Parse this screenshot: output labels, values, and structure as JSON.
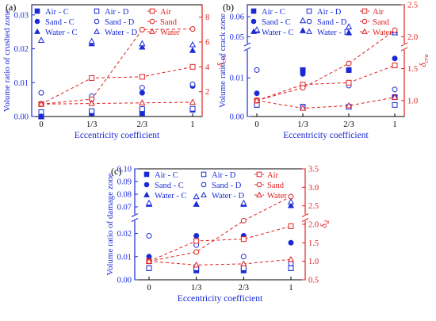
{
  "legend_series": [
    {
      "key": "air_c",
      "label": "Air - C",
      "marker": "square",
      "filled": true,
      "color": "#1a2bd6"
    },
    {
      "key": "air_d",
      "label": "Air - D",
      "marker": "square",
      "filled": false,
      "color": "#1a2bd6"
    },
    {
      "key": "air",
      "label": "Air",
      "marker": "square",
      "filled": false,
      "color": "#e02020",
      "dashed": true
    },
    {
      "key": "sand_c",
      "label": "Sand - C",
      "marker": "circle",
      "filled": true,
      "color": "#1a2bd6"
    },
    {
      "key": "sand_d",
      "label": "Sand - D",
      "marker": "circle",
      "filled": false,
      "color": "#1a2bd6"
    },
    {
      "key": "sand",
      "label": "Sand",
      "marker": "circle",
      "filled": false,
      "color": "#e02020",
      "dashed": true
    },
    {
      "key": "water_c",
      "label": "Water - C",
      "marker": "triangle",
      "filled": true,
      "color": "#1a2bd6"
    },
    {
      "key": "water_d",
      "label": "Water - D",
      "marker": "triangle",
      "filled": false,
      "color": "#1a2bd6"
    },
    {
      "key": "water",
      "label": "Water",
      "marker": "triangle",
      "filled": false,
      "color": "#e02020",
      "dashed": true
    }
  ],
  "colors": {
    "left_axis": "#1a2bd6",
    "right_axis": "#e02020",
    "frame": "#000000"
  },
  "chart_data": [
    {
      "panel_label": "(a)",
      "type": "scatter",
      "x_ticks": [
        "0",
        "1/3",
        "2/3",
        "1"
      ],
      "x": [
        0,
        0.3333,
        0.6667,
        1
      ],
      "xlabel": "Eccentricity coefficient",
      "ylabel": "Volume ratio of crushed zone",
      "y2label": "δ",
      "y2label_sub": "cru",
      "y_segments": [
        {
          "range": [
            0,
            0.033
          ],
          "ticks": [
            "0.00",
            "0.01",
            "0.02",
            "0.03"
          ]
        }
      ],
      "y2_range": [
        0,
        9
      ],
      "y2_ticks": [
        "2",
        "4",
        "6",
        "8"
      ],
      "series": {
        "air_c": [
          0.0,
          0.001,
          0.001,
          0.002
        ],
        "air_d": [
          0.0013,
          0.0016,
          0.0022,
          0.0023
        ],
        "sand_c": [
          0.0,
          0.005,
          0.007,
          0.009
        ],
        "sand_d": [
          0.007,
          0.006,
          0.0085,
          0.0095
        ],
        "water_c": [
          0.0,
          0.0215,
          0.0205,
          0.0195
        ],
        "water_d": [
          0.0225,
          0.0222,
          0.0215,
          0.0212
        ],
        "air": [
          1.0,
          3.1,
          3.2,
          4.0
        ],
        "sand": [
          1.0,
          1.4,
          7.0,
          7.05
        ],
        "water": [
          1.0,
          1.05,
          1.1,
          1.15
        ]
      }
    },
    {
      "panel_label": "(b)",
      "type": "scatter",
      "x_ticks": [
        "0",
        "1/3",
        "2/3",
        "1"
      ],
      "x": [
        0,
        0.3333,
        0.6667,
        1
      ],
      "xlabel": "Eccentricity coefficient",
      "ylabel": "Volume ratio of crack zone",
      "y2label": "δ",
      "y2label_sub": "cra",
      "y_segments": [
        {
          "range": [
            0,
            0.017
          ],
          "ticks": [
            "0.00",
            "0.01"
          ]
        },
        {
          "range": [
            0.047,
            0.066
          ],
          "ticks": [
            "0.05",
            "0.06"
          ]
        }
      ],
      "y2_range": [
        0.75,
        2.5
      ],
      "y2_ticks": [
        "1.0",
        "1.5",
        "2.0",
        "2.5"
      ],
      "series": {
        "air_c": [
          0.003,
          0.012,
          0.012,
          0.005
        ],
        "air_d": [
          0.003,
          0.0025,
          0.0025,
          0.003
        ],
        "sand_c": [
          0.006,
          0.011,
          0.012,
          0.015
        ],
        "sand_d": [
          0.012,
          0.0025,
          0.008,
          0.007
        ],
        "water_c": [
          0.053,
          0.053,
          0.052,
          0.053
        ],
        "water_d": [
          0.0535,
          0.058,
          0.055,
          0.052
        ],
        "air": [
          1.0,
          1.25,
          1.28,
          1.55
        ],
        "sand": [
          1.0,
          1.2,
          1.58,
          2.1
        ],
        "water": [
          1.0,
          0.88,
          0.92,
          1.05
        ]
      }
    },
    {
      "panel_label": "(c)",
      "type": "scatter",
      "x_ticks": [
        "0",
        "1/3",
        "2/3",
        "1"
      ],
      "x": [
        0,
        0.3333,
        0.6667,
        1
      ],
      "xlabel": "Eccentricity coefficient",
      "ylabel": "Volume ratio of damage zone",
      "y2label": "δ",
      "y2label_sub": "d",
      "y_segments": [
        {
          "range": [
            0,
            0.025
          ],
          "ticks": [
            "0.00",
            "0.01",
            "0.02"
          ]
        },
        {
          "range": [
            0.065,
            0.1
          ],
          "ticks": [
            "0.07",
            "0.08",
            "0.09",
            "0.10"
          ]
        }
      ],
      "y2_range": [
        0.5,
        3.5
      ],
      "y2_ticks": [
        "0.5",
        "1.0",
        "1.5",
        "2.0",
        "2.5",
        "3.0",
        "3.5"
      ],
      "series": {
        "air_c": [
          0.005,
          0.004,
          0.004,
          0.005
        ],
        "air_d": [
          0.005,
          0.005,
          0.005,
          0.005
        ],
        "sand_c": [
          0.01,
          0.019,
          0.019,
          0.016
        ],
        "sand_d": [
          0.019,
          0.015,
          0.01,
          0.007
        ],
        "water_c": [
          0.072,
          0.072,
          0.072,
          0.071
        ],
        "water_d": [
          0.073,
          0.078,
          0.073,
          0.074
        ],
        "air": [
          1.0,
          1.55,
          1.6,
          1.95
        ],
        "sand": [
          1.0,
          1.25,
          2.1,
          2.75
        ],
        "water": [
          1.0,
          0.9,
          0.93,
          1.05
        ]
      }
    }
  ]
}
